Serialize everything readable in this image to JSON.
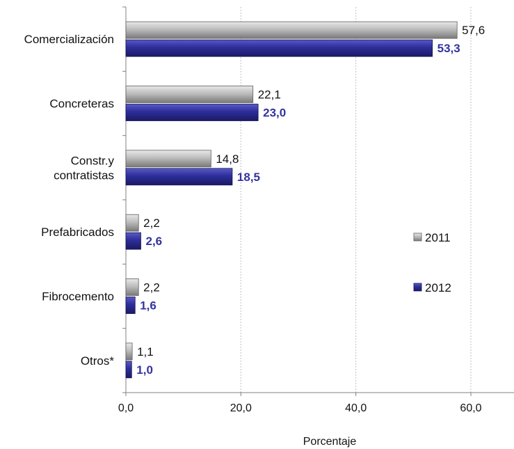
{
  "chart_data": {
    "type": "bar",
    "orientation": "horizontal",
    "categories": [
      "Comercialización",
      [
        "Concreteras"
      ],
      [
        "Constr.y",
        "contratistas"
      ],
      [
        "Prefabricados"
      ],
      [
        "Fibrocemento"
      ],
      [
        "Otros*"
      ]
    ],
    "category_names": [
      "Comercialización",
      "Concreteras",
      "Constr.y contratistas",
      "Prefabricados",
      "Fibrocemento",
      "Otros*"
    ],
    "series": [
      {
        "name": "2011",
        "values": [
          57.6,
          22.1,
          14.8,
          2.2,
          2.2,
          1.1
        ],
        "labels": [
          "57,6",
          "22,1",
          "14,8",
          "2,2",
          "2,2",
          "1,1"
        ],
        "color": "#a6a6a6"
      },
      {
        "name": "2012",
        "values": [
          53.3,
          23.0,
          18.5,
          2.6,
          1.6,
          1.0
        ],
        "labels": [
          "53,3",
          "23,0",
          "18,5",
          "2,6",
          "1,6",
          "1,0"
        ],
        "color": "#2e2e9a"
      }
    ],
    "xlabel": "Porcentaje",
    "xlim": [
      0,
      65
    ],
    "xticks": [
      0,
      20,
      40,
      60
    ],
    "xtick_labels": [
      "0,0",
      "20,0",
      "40,0",
      "60,0"
    ],
    "grid": "vertical dotted",
    "legend_position": "right-middle"
  }
}
